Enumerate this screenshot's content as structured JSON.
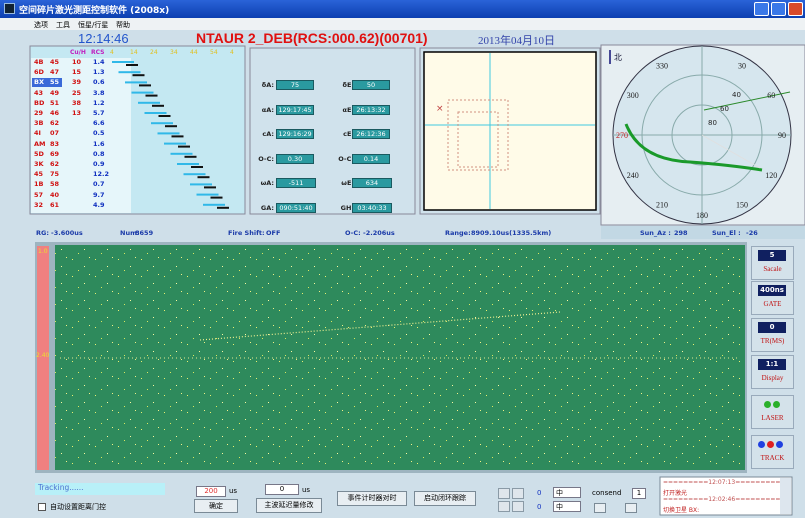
{
  "window": {
    "title": "空间碎片激光测距控制软件 (2008x)",
    "menu": [
      "选项",
      "工具",
      "恒星/行星",
      "帮助"
    ]
  },
  "header": {
    "time": "12:14:46",
    "target": "NTAUR 2_DEB(RCS:000.62)(00701)",
    "date": "2013年04月10日"
  },
  "target_list": {
    "columns": [
      "Cu/H",
      "RCS"
    ],
    "scale": [
      "4",
      "14",
      "24",
      "34",
      "44",
      "54",
      "4"
    ],
    "rows": [
      [
        "4B",
        "45",
        "10",
        "1.4"
      ],
      [
        "6D",
        "47",
        "15",
        "1.3"
      ],
      [
        "BX",
        "55",
        "39",
        "0.6"
      ],
      [
        "43",
        "49",
        "25",
        "3.8"
      ],
      [
        "BD",
        "51",
        "38",
        "1.2"
      ],
      [
        "29",
        "46",
        "13",
        "5.7"
      ],
      [
        "3B",
        "62",
        "6.6"
      ],
      [
        "4I",
        "07",
        "0.5"
      ],
      [
        "AM",
        "83",
        "1.6"
      ],
      [
        "5D",
        "69",
        "0.8"
      ],
      [
        "3K",
        "62",
        "0.9"
      ],
      [
        "45",
        "75",
        "12.2"
      ],
      [
        "1B",
        "58",
        "0.7"
      ],
      [
        "57",
        "40",
        "9.7"
      ],
      [
        "32",
        "61",
        "4.9"
      ]
    ]
  },
  "params": [
    {
      "label": "δA:",
      "value": "75"
    },
    {
      "label": "δE:",
      "value": "50"
    },
    {
      "label": "αA:",
      "value": "129:17:45"
    },
    {
      "label": "αE:",
      "value": "26:13:32"
    },
    {
      "label": "cA:",
      "value": "129:16:29"
    },
    {
      "label": "cE:",
      "value": "26:12:36"
    },
    {
      "label": "O-C:",
      "value": "0.30"
    },
    {
      "label": "O-C:",
      "value": "0.14"
    },
    {
      "label": "ωA:",
      "value": "-511"
    },
    {
      "label": "ωE:",
      "value": "634"
    },
    {
      "label": "GA:",
      "value": "090:51:40"
    },
    {
      "label": "GH:",
      "value": "03:40:33"
    }
  ],
  "polar": {
    "north": "北",
    "angles": [
      330,
      30,
      300,
      60,
      270,
      90,
      240,
      120,
      210,
      150,
      180
    ],
    "rings": [
      "80",
      "60",
      "40"
    ]
  },
  "status": [
    {
      "label": "RG:",
      "value": "-3.600us"
    },
    {
      "label": "Num:",
      "value": "8659"
    },
    {
      "label": "Fire Shift:",
      "value": "OFF"
    },
    {
      "label": "O-C:",
      "value": "-2.206us"
    },
    {
      "label": "Range:",
      "value": "8909.10us(1335.5km)"
    },
    {
      "label": "Sun_Az :",
      "value": "298"
    },
    {
      "label": "Sun_El :",
      "value": "-26"
    }
  ],
  "plot": {
    "top_label": "1.0",
    "mid_label": "2.40"
  },
  "side": [
    {
      "value": "5",
      "label": "Sacale"
    },
    {
      "value": "400ns",
      "label": "GATE"
    },
    {
      "value": "0",
      "label": "TR(MS)"
    },
    {
      "value": "1:1",
      "label": "Display"
    },
    {
      "label": "LASER"
    },
    {
      "label": "TRACK"
    }
  ],
  "bottom": {
    "status": "Tracking......",
    "auto_gate": "自动设置距离门控",
    "gate_value": "200",
    "gate_unit": "us",
    "confirm": "确定",
    "delay_value": "0",
    "delay_unit": "us",
    "delay_button": "主波延迟量修改",
    "sync_button": "事件计时器对时",
    "loop_button": "启动闭环跟踪",
    "az_offset": "0",
    "az_mode": "中",
    "el_offset": "0",
    "el_mode": "中",
    "consend_label": "consend",
    "consend_value": "1",
    "log": [
      "=========12:07:13=========",
      "打开激光",
      "=========12:02:46=========",
      "切换卫星 BX:"
    ]
  }
}
